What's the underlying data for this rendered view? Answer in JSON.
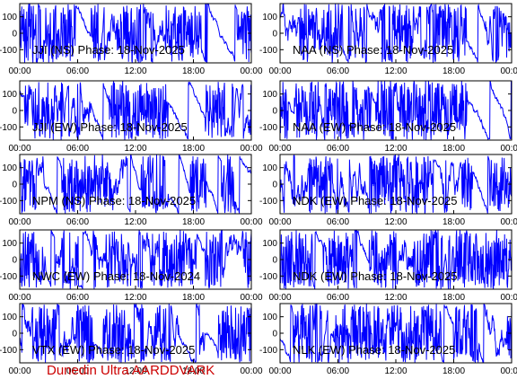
{
  "credit": "Dunedin Ultra AARDDVARK",
  "colors": {
    "trace": "#0000ff",
    "frame": "#000000",
    "credit": "#cc0000"
  },
  "chart_data": [
    {
      "type": "line",
      "title": "JJI (NS) Phase: 18-Nov-2025",
      "x_ticks": [
        "00:00",
        "06:00",
        "12:00",
        "18:00",
        "00:00"
      ],
      "y_ticks": [
        100,
        0,
        -100
      ],
      "ylim": [
        -180,
        180
      ],
      "xlim_hours": [
        0,
        24
      ],
      "series": [
        {
          "hours": [
            0,
            24
          ],
          "phase": [
            -180,
            180
          ]
        }
      ]
    },
    {
      "type": "line",
      "title": "NAA (NS) Phase: 18-Nov-2025",
      "x_ticks": [
        "00:00",
        "06:00",
        "12:00",
        "18:00",
        "00:00"
      ],
      "y_ticks": [
        100,
        0,
        -100
      ],
      "ylim": [
        -180,
        180
      ],
      "xlim_hours": [
        0,
        24
      ],
      "series": [
        {
          "hours": [
            0,
            24
          ],
          "phase": [
            -180,
            180
          ]
        }
      ]
    },
    {
      "type": "line",
      "title": "JJI (EW) Phase: 18-Nov-2025",
      "x_ticks": [
        "00:00",
        "06:00",
        "12:00",
        "18:00",
        "00:00"
      ],
      "y_ticks": [
        100,
        0,
        -100
      ],
      "ylim": [
        -180,
        180
      ],
      "xlim_hours": [
        0,
        24
      ],
      "series": [
        {
          "hours": [
            0,
            24
          ],
          "phase": [
            -180,
            180
          ]
        }
      ]
    },
    {
      "type": "line",
      "title": "NAA (EW) Phase: 18-Nov-2025",
      "x_ticks": [
        "00:00",
        "06:00",
        "12:00",
        "18:00",
        "00:00"
      ],
      "y_ticks": [
        100,
        0,
        -100
      ],
      "ylim": [
        -180,
        180
      ],
      "xlim_hours": [
        0,
        24
      ],
      "series": [
        {
          "hours": [
            0,
            24
          ],
          "phase": [
            -180,
            180
          ]
        }
      ]
    },
    {
      "type": "line",
      "title": "NPM (NS) Phase: 18-Nov-2025",
      "x_ticks": [
        "00:00",
        "06:00",
        "12:00",
        "18:00",
        "00:00"
      ],
      "y_ticks": [
        100,
        0,
        -100
      ],
      "ylim": [
        -180,
        180
      ],
      "xlim_hours": [
        0,
        24
      ],
      "series": [
        {
          "hours": [
            0,
            24
          ],
          "phase": [
            -180,
            180
          ]
        }
      ]
    },
    {
      "type": "line",
      "title": "NDK (EW) Phase: 18-Nov-2025",
      "x_ticks": [
        "00:00",
        "06:00",
        "12:00",
        "18:00",
        "00:00"
      ],
      "y_ticks": [
        100,
        0,
        -100
      ],
      "ylim": [
        -180,
        180
      ],
      "xlim_hours": [
        0,
        24
      ],
      "series": [
        {
          "hours": [
            0,
            24
          ],
          "phase": [
            -180,
            180
          ]
        }
      ]
    },
    {
      "type": "line",
      "title": "NWC (EW) Phase: 18-Nov-2024",
      "x_ticks": [
        "00:00",
        "06:00",
        "12:00",
        "18:00",
        "00:00"
      ],
      "y_ticks": [
        100,
        0,
        -100
      ],
      "ylim": [
        -180,
        180
      ],
      "xlim_hours": [
        0,
        24
      ],
      "series": [
        {
          "hours": [
            0,
            24
          ],
          "phase": [
            -180,
            180
          ]
        }
      ]
    },
    {
      "type": "line",
      "title": "NDK (EW) Phase: 18-Nov-2025",
      "x_ticks": [
        "00:00",
        "06:00",
        "12:00",
        "18:00",
        "00:00"
      ],
      "y_ticks": [
        100,
        0,
        -100
      ],
      "ylim": [
        -180,
        180
      ],
      "xlim_hours": [
        0,
        24
      ],
      "series": [
        {
          "hours": [
            0,
            24
          ],
          "phase": [
            -180,
            180
          ]
        }
      ]
    },
    {
      "type": "line",
      "title": "VTX (EW) Phase: 18-Nov-2025",
      "x_ticks": [
        "00:00",
        "06:00",
        "12:00",
        "18:00",
        "00:00"
      ],
      "y_ticks": [
        100,
        0,
        -100
      ],
      "ylim": [
        -180,
        180
      ],
      "xlim_hours": [
        0,
        24
      ],
      "series": [
        {
          "hours": [
            0,
            24
          ],
          "phase": [
            -180,
            180
          ]
        }
      ]
    },
    {
      "type": "line",
      "title": "NLK (EW) Phase: 18-Nov-2025",
      "x_ticks": [
        "00:00",
        "06:00",
        "12:00",
        "18:00",
        "00:00"
      ],
      "y_ticks": [
        100,
        0,
        -100
      ],
      "ylim": [
        -180,
        180
      ],
      "xlim_hours": [
        0,
        24
      ],
      "series": [
        {
          "hours": [
            0,
            24
          ],
          "phase": [
            -180,
            180
          ]
        }
      ]
    }
  ]
}
